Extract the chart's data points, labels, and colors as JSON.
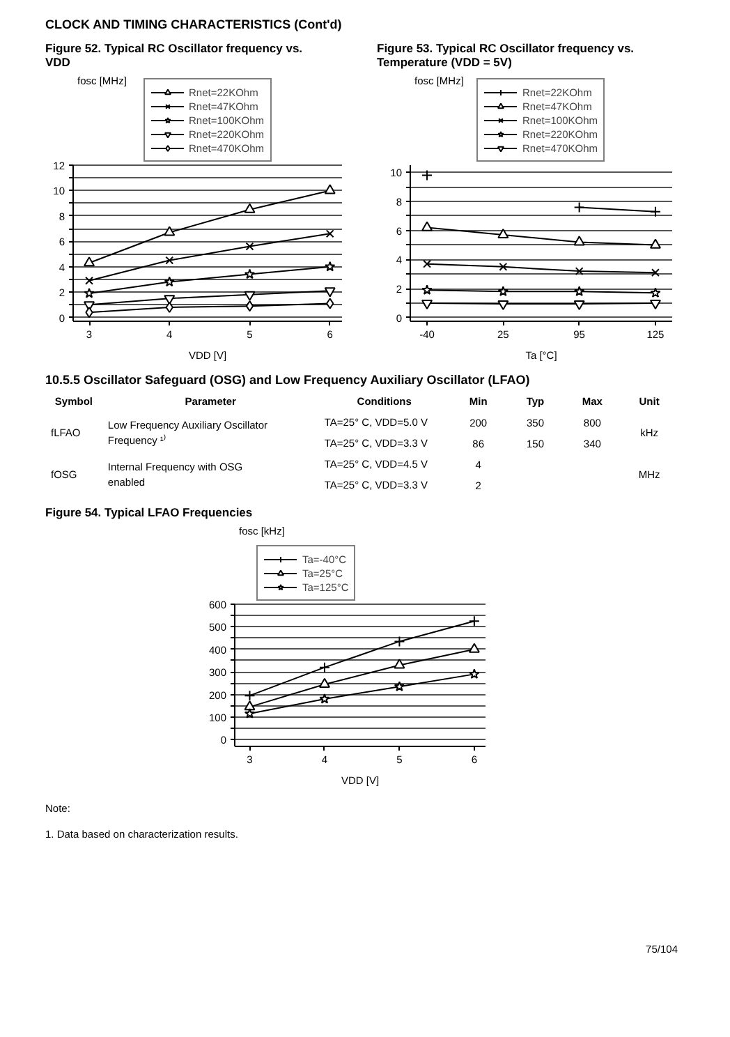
{
  "chart_data": [
    {
      "type": "line",
      "title": "Figure 52. Typical RC Oscillator frequency vs. VDD",
      "annotations": [
        "CLOCK AND TIMING CHARACTERISTICS (Cont'd)"
      ],
      "xlabel": "VDD [V]",
      "ylabel": "fosc [MHz]",
      "x": [
        3,
        4,
        5,
        6
      ],
      "xlim": [
        2.8,
        6.15
      ],
      "xticks": [
        3,
        4,
        5,
        6
      ],
      "ylim": [
        -0.3,
        12
      ],
      "yticks": [
        0,
        {
          "value": 1,
          "label": null
        },
        2,
        {
          "value": 3,
          "label": null
        },
        4,
        {
          "value": 5,
          "label": null
        },
        6,
        {
          "value": 7,
          "label": null
        },
        8,
        {
          "value": 9,
          "label": null
        },
        10,
        {
          "value": 11,
          "label": null
        },
        12
      ],
      "grid": "y",
      "legend": "top",
      "line_style": "solid",
      "series": [
        {
          "name": "Rnet=22KOhm",
          "color": "#000000",
          "marker": "triangle",
          "values": [
            4.3,
            6.7,
            8.5,
            10.0
          ]
        },
        {
          "name": "Rnet=47KOhm",
          "color": "#000000",
          "marker": "x",
          "values": [
            2.9,
            4.5,
            5.6,
            6.6
          ]
        },
        {
          "name": "Rnet=100KOhm",
          "color": "#000000",
          "marker": "star",
          "values": [
            1.9,
            2.8,
            3.4,
            4.0
          ]
        },
        {
          "name": "Rnet=220KOhm",
          "color": "#000000",
          "marker": "triangle_down",
          "values": [
            1.0,
            1.5,
            1.8,
            2.1
          ]
        },
        {
          "name": "Rnet=470KOhm",
          "color": "#000000",
          "marker": "diamond",
          "values": [
            0.4,
            0.8,
            0.9,
            1.1
          ]
        }
      ]
    },
    {
      "type": "line",
      "title": "Figure 53. Typical RC Oscillator frequency vs. Temperature (VDD = 5V)",
      "xlabel": "Ta [°C]",
      "ylabel": "fosc [MHz]",
      "categories": [
        "-40",
        "25",
        "95",
        "125"
      ],
      "ylim": [
        -0.25,
        10.5
      ],
      "yticks": [
        0,
        {
          "value": 1,
          "label": null
        },
        2,
        {
          "value": 3,
          "label": null
        },
        4,
        {
          "value": 5,
          "label": null
        },
        6,
        {
          "value": 7,
          "label": null
        },
        8,
        {
          "value": 9,
          "label": null
        },
        10
      ],
      "grid": "y",
      "legend": "top",
      "line_style": "solid",
      "series": [
        {
          "name": "Rnet=22KOhm",
          "color": "#000000",
          "marker": "cross",
          "values": [
            9.8,
            null,
            7.6,
            7.3
          ]
        },
        {
          "name": "Rnet=47KOhm",
          "color": "#000000",
          "marker": "triangle",
          "values": [
            6.2,
            5.7,
            5.2,
            5.0
          ]
        },
        {
          "name": "Rnet=100KOhm",
          "color": "#000000",
          "marker": "x",
          "values": [
            3.7,
            3.5,
            3.2,
            3.1
          ]
        },
        {
          "name": "Rnet=220KOhm",
          "color": "#000000",
          "marker": "star",
          "values": [
            1.9,
            1.8,
            1.8,
            1.7
          ]
        },
        {
          "name": "Rnet=470KOhm",
          "color": "#000000",
          "marker": "triangle_down",
          "values": [
            1.0,
            0.95,
            0.95,
            1.0
          ]
        }
      ]
    },
    {
      "type": "other",
      "title": "10.5.5 Oscillator Safeguard (OSG) and Low Frequency Auxiliary Oscillator (LFAO)",
      "categories": [
        "Symbol",
        "Parameter",
        "Conditions",
        "Min",
        "Typ",
        "Max",
        "Unit"
      ],
      "cell_labels": [
        [
          "fLFAO",
          "Low Frequency Auxiliary Oscillator Frequency ¹⁾",
          "TA=25° C, VDD=5.0 V",
          "200",
          "350",
          "800",
          "kHz"
        ],
        [
          null,
          null,
          "TA=25° C, VDD=3.3 V",
          "86",
          "150",
          "340",
          null
        ],
        [
          "fOSG",
          "Internal Frequency with OSG enabled",
          "TA=25° C, VDD=4.5 V",
          "4",
          null,
          null,
          "MHz"
        ],
        [
          null,
          null,
          "TA=25° C, VDD=3.3 V",
          "2",
          null,
          null,
          null
        ]
      ]
    },
    {
      "type": "line",
      "title": "Figure 54. Typical LFAO Frequencies",
      "annotations": [
        "Note:",
        "1. Data based on characterization results.",
        "75/104"
      ],
      "xlabel": "VDD [V]",
      "ylabel": "fosc [kHz]",
      "x": [
        3,
        4,
        5,
        6
      ],
      "xlim": [
        2.8,
        6.15
      ],
      "xticks": [
        3,
        4,
        5,
        6
      ],
      "ylim": [
        -30,
        600
      ],
      "yticks": [
        0,
        {
          "value": 50,
          "label": null
        },
        100,
        {
          "value": 150,
          "label": null
        },
        200,
        {
          "value": 250,
          "label": null
        },
        300,
        {
          "value": 350,
          "label": null
        },
        400,
        {
          "value": 450,
          "label": null
        },
        500,
        {
          "value": 550,
          "label": null
        },
        600
      ],
      "grid": "y",
      "legend": "top left",
      "line_style": "solid",
      "series": [
        {
          "name": "Ta=-40°C",
          "color": "#000000",
          "marker": "cross",
          "values": [
            195,
            320,
            435,
            525
          ]
        },
        {
          "name": "Ta=25°C",
          "color": "#000000",
          "marker": "triangle",
          "values": [
            145,
            245,
            330,
            400
          ]
        },
        {
          "name": "Ta=125°C",
          "color": "#000000",
          "marker": "star",
          "values": [
            115,
            180,
            235,
            290
          ]
        }
      ]
    }
  ]
}
